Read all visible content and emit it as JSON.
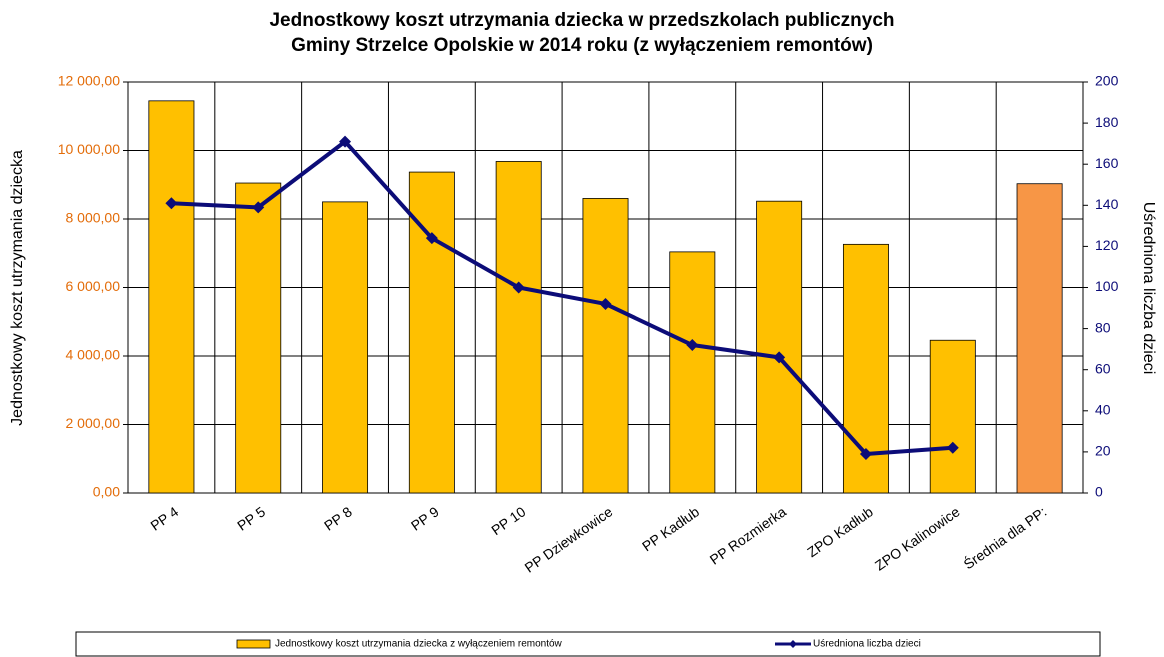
{
  "chart_data": {
    "type": "combo",
    "title": [
      "Jednostkowy koszt utrzymania dziecka w przedszkolach publicznych",
      "Gminy Strzelce Opolskie w 2014 roku (z wyłączeniem remontów)"
    ],
    "y_label": "Jednostkowy koszt utrzymania dziecka",
    "y2_label": "Uśredniona liczba dzieci",
    "categories": [
      "PP 4",
      "PP 5",
      "PP 8",
      "PP 9",
      "PP 10",
      "PP Dziewkowice",
      "PP Kadłub",
      "PP Rozmierka",
      "ZPO Kadłub",
      "ZPO Kalinowice",
      "Średnia dla PP:"
    ],
    "series": [
      {
        "name": "Jednostkowy koszt utrzymania dziecka z wyłączeniem remontów",
        "type": "bar",
        "color": "#FFC000",
        "colors": [
          "#FFC000",
          "#FFC000",
          "#FFC000",
          "#FFC000",
          "#FFC000",
          "#FFC000",
          "#FFC000",
          "#FFC000",
          "#FFC000",
          "#FFC000",
          "#F79646"
        ],
        "values": [
          11450,
          9050,
          8500,
          9370,
          9680,
          8600,
          7040,
          8520,
          7260,
          4460,
          9030
        ]
      },
      {
        "name": "Uśredniona liczba dzieci",
        "type": "line",
        "axis": "y2",
        "color": "#0C0C78",
        "values": [
          141,
          139,
          171,
          124,
          100,
          92,
          72,
          66,
          19,
          22,
          null
        ]
      }
    ],
    "ylim": [
      0,
      12000
    ],
    "yticks": [
      {
        "value": 0,
        "label": "0,00"
      },
      {
        "value": 2000,
        "label": "2 000,00"
      },
      {
        "value": 4000,
        "label": "4 000,00"
      },
      {
        "value": 6000,
        "label": "6 000,00"
      },
      {
        "value": 8000,
        "label": "8 000,00"
      },
      {
        "value": 10000,
        "label": "10 000,00"
      },
      {
        "value": 12000,
        "label": "12 000,00"
      }
    ],
    "y2lim": [
      0,
      200
    ],
    "y2ticks": [
      0,
      20,
      40,
      60,
      80,
      100,
      120,
      140,
      160,
      180,
      200
    ],
    "ytick_color": "#E36C09",
    "y2tick_color": "#0C0C78",
    "grid": true
  }
}
